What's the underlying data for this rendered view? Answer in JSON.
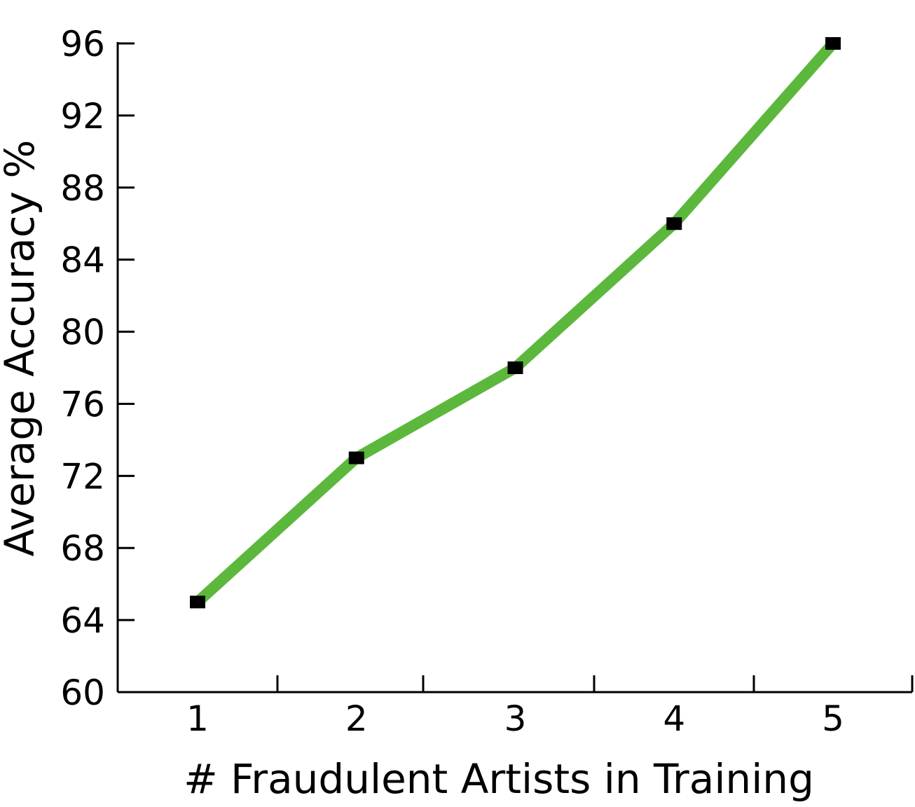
{
  "chart_data": {
    "type": "line",
    "x": [
      1,
      2,
      3,
      4,
      5
    ],
    "series": [
      {
        "values": [
          65,
          73,
          78,
          86,
          96
        ],
        "color": "#5cb83c",
        "marker": "square",
        "marker_color": "#000000"
      }
    ],
    "xlabel": "# Fraudulent Artists in Training",
    "ylabel": "Average Accuracy  %",
    "xlim": [
      0.5,
      5.5
    ],
    "ylim": [
      60,
      96
    ],
    "x_ticks": [
      "1",
      "2",
      "3",
      "4",
      "5"
    ],
    "y_ticks": [
      "60",
      "64",
      "68",
      "72",
      "76",
      "80",
      "84",
      "88",
      "92",
      "96"
    ],
    "grid": false,
    "legend": "none"
  }
}
